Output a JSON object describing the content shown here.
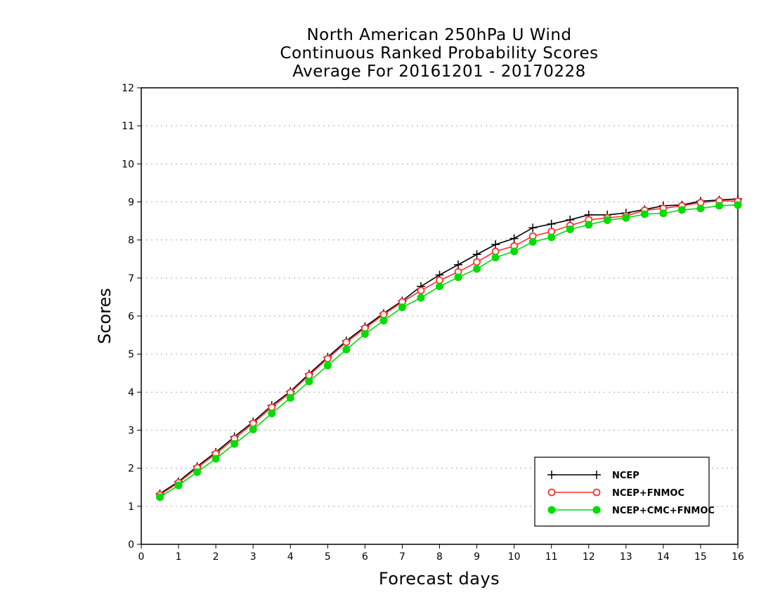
{
  "chart_data": {
    "type": "line",
    "title": [
      "North American 250hPa U Wind",
      "Continuous Ranked Probability Scores",
      "Average For 20161201 - 20170228"
    ],
    "xlabel": "Forecast days",
    "ylabel": "Scores",
    "xlim": [
      0,
      16
    ],
    "ylim": [
      0,
      12
    ],
    "xticks": [
      "0",
      "1",
      "2",
      "3",
      "4",
      "5",
      "6",
      "7",
      "8",
      "9",
      "10",
      "11",
      "12",
      "13",
      "14",
      "15",
      "16"
    ],
    "yticks": [
      "0",
      "1",
      "2",
      "3",
      "4",
      "5",
      "6",
      "7",
      "8",
      "9",
      "10",
      "11",
      "12"
    ],
    "grid": "horizontal dotted",
    "legend_position": "bottom-right",
    "x": [
      0.5,
      1,
      1.5,
      2,
      2.5,
      3,
      3.5,
      4,
      4.5,
      5,
      5.5,
      6,
      6.5,
      7,
      7.5,
      8,
      8.5,
      9,
      9.5,
      10,
      10.5,
      11,
      11.5,
      12,
      12.5,
      13,
      13.5,
      14,
      14.5,
      15,
      15.5,
      16
    ],
    "series": [
      {
        "name": "NCEP",
        "color": "#000000",
        "marker": "plus",
        "values": [
          1.33,
          1.65,
          2.05,
          2.42,
          2.83,
          3.22,
          3.65,
          4.02,
          4.48,
          4.92,
          5.35,
          5.72,
          6.07,
          6.4,
          6.78,
          7.08,
          7.35,
          7.62,
          7.88,
          8.04,
          8.32,
          8.42,
          8.53,
          8.66,
          8.66,
          8.71,
          8.8,
          8.9,
          8.92,
          9.02,
          9.05,
          9.08
        ]
      },
      {
        "name": "NCEP+FNMOC",
        "color": "#ff3030",
        "marker": "open-circle",
        "values": [
          1.3,
          1.62,
          2.01,
          2.38,
          2.78,
          3.18,
          3.6,
          3.99,
          4.44,
          4.88,
          5.31,
          5.68,
          6.04,
          6.37,
          6.67,
          6.94,
          7.16,
          7.42,
          7.7,
          7.84,
          8.1,
          8.22,
          8.38,
          8.53,
          8.58,
          8.63,
          8.78,
          8.83,
          8.9,
          8.98,
          9.03,
          9.02
        ]
      },
      {
        "name": "NCEP+CMC+FNMOC",
        "color": "#00dd00",
        "marker": "filled-circle",
        "values": [
          1.24,
          1.55,
          1.9,
          2.25,
          2.64,
          3.02,
          3.44,
          3.85,
          4.28,
          4.7,
          5.12,
          5.53,
          5.88,
          6.23,
          6.48,
          6.78,
          7.02,
          7.24,
          7.54,
          7.7,
          7.95,
          8.07,
          8.28,
          8.4,
          8.52,
          8.58,
          8.68,
          8.7,
          8.79,
          8.83,
          8.9,
          8.92
        ]
      }
    ]
  }
}
